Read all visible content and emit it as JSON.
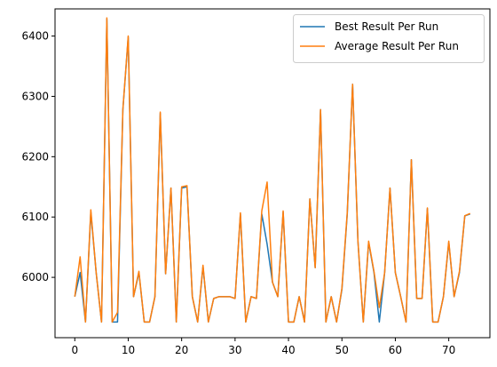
{
  "chart_data": {
    "type": "line",
    "title": "",
    "xlabel": "",
    "ylabel": "",
    "xlim": [
      -3.7,
      77.7
    ],
    "ylim": [
      5900,
      6445
    ],
    "xticks": [
      0,
      10,
      20,
      30,
      40,
      50,
      60,
      70
    ],
    "yticks": [
      6000,
      6100,
      6200,
      6300,
      6400
    ],
    "grid": false,
    "legend_position": "top-right",
    "x": [
      0,
      1,
      2,
      3,
      4,
      5,
      6,
      7,
      8,
      9,
      10,
      11,
      12,
      13,
      14,
      15,
      16,
      17,
      18,
      19,
      20,
      21,
      22,
      23,
      24,
      25,
      26,
      27,
      28,
      29,
      30,
      31,
      32,
      33,
      34,
      35,
      36,
      37,
      38,
      39,
      40,
      41,
      42,
      43,
      44,
      45,
      46,
      47,
      48,
      49,
      50,
      51,
      52,
      53,
      54,
      55,
      56,
      57,
      58,
      59,
      60,
      61,
      62,
      63,
      64,
      65,
      66,
      67,
      68,
      69,
      70,
      71,
      72,
      73,
      74
    ],
    "series": [
      {
        "name": "Best Result Per Run",
        "color": "#1f77b4",
        "values": [
          5968,
          6008,
          5926,
          6108,
          6008,
          5926,
          6428,
          5926,
          5926,
          6278,
          6398,
          5968,
          6008,
          5926,
          5926,
          5968,
          6272,
          6006,
          6148,
          5926,
          6148,
          6150,
          5968,
          5926,
          6018,
          5926,
          5965,
          5968,
          5968,
          5968,
          5965,
          6105,
          5926,
          5968,
          5965,
          6105,
          6055,
          5992,
          5968,
          6108,
          5926,
          5926,
          5968,
          5926,
          6130,
          6016,
          6278,
          5926,
          5968,
          5926,
          5980,
          6105,
          6320,
          6060,
          5926,
          6058,
          6008,
          5926,
          6008,
          6148,
          6008,
          5968,
          5926,
          6195,
          5965,
          5965,
          6114,
          5926,
          5926,
          5968,
          6058,
          5968,
          6008,
          6102,
          6105
        ]
      },
      {
        "name": "Average Result Per Run",
        "color": "#ff7f0e",
        "values": [
          5968,
          6034,
          5926,
          6112,
          6008,
          5926,
          6430,
          5926,
          5942,
          6278,
          6400,
          5968,
          6010,
          5926,
          5926,
          5968,
          6274,
          6006,
          6148,
          5926,
          6150,
          6152,
          5968,
          5926,
          6020,
          5926,
          5965,
          5968,
          5968,
          5968,
          5965,
          6107,
          5926,
          5968,
          5965,
          6110,
          6158,
          5992,
          5968,
          6110,
          5926,
          5926,
          5968,
          5926,
          6130,
          6016,
          6278,
          5926,
          5968,
          5926,
          5982,
          6108,
          6320,
          6060,
          5926,
          6060,
          6010,
          5950,
          6008,
          6148,
          6008,
          5968,
          5926,
          6195,
          5965,
          5965,
          6115,
          5926,
          5926,
          5968,
          6060,
          5968,
          6010,
          6102,
          6106
        ]
      }
    ]
  }
}
